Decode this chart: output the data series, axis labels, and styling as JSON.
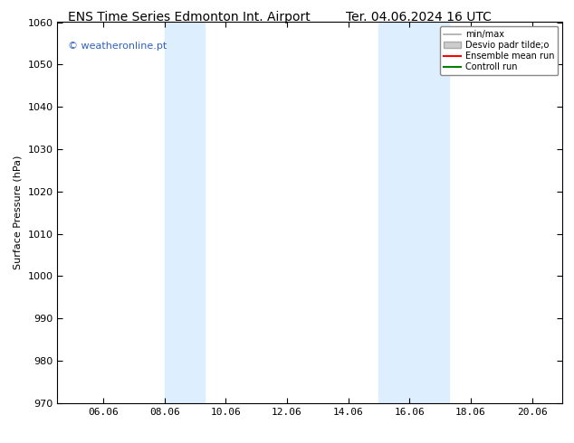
{
  "title": "ENS Time Series Edmonton Int. Airport",
  "title_right": "Ter. 04.06.2024 16 UTC",
  "ylabel": "Surface Pressure (hPa)",
  "ylim": [
    970,
    1060
  ],
  "yticks": [
    970,
    980,
    990,
    1000,
    1010,
    1020,
    1030,
    1040,
    1050,
    1060
  ],
  "xlim_start": 4.5,
  "xlim_end": 21.0,
  "xtick_labels": [
    "06.06",
    "08.06",
    "10.06",
    "12.06",
    "14.06",
    "16.06",
    "18.06",
    "20.06"
  ],
  "xtick_positions": [
    6,
    8,
    10,
    12,
    14,
    16,
    18,
    20
  ],
  "shaded_bands": [
    {
      "x_start": 8.0,
      "x_end": 9.3
    },
    {
      "x_start": 15.0,
      "x_end": 17.3
    }
  ],
  "shaded_color": "#ddeeff",
  "watermark_text": "© weatheronline.pt",
  "watermark_color": "#3060c0",
  "legend_entries": [
    {
      "label": "min/max",
      "color": "#aaaaaa",
      "lw": 1.2
    },
    {
      "label": "Desvio padr tilde;o",
      "color": "#cccccc",
      "lw": 6
    },
    {
      "label": "Ensemble mean run",
      "color": "red",
      "lw": 1.5
    },
    {
      "label": "Controll run",
      "color": "green",
      "lw": 1.5
    }
  ],
  "bg_color": "#ffffff",
  "title_fontsize": 10,
  "axis_fontsize": 8,
  "tick_fontsize": 8
}
